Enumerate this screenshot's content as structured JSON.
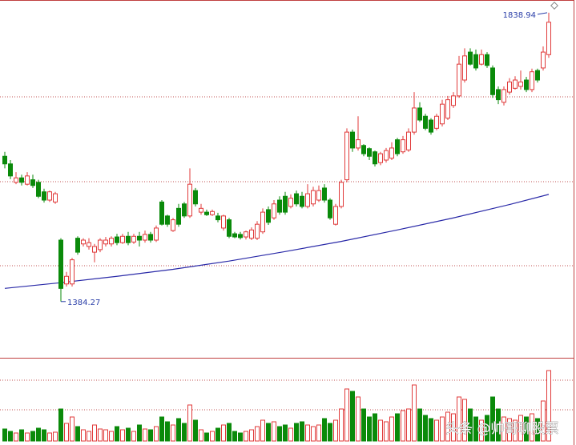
{
  "chart_data": {
    "type": "candlestick",
    "open": [
      1613,
      1601,
      1572,
      1579,
      1569,
      1576,
      1572,
      1557,
      1544,
      1541,
      1481,
      1412,
      1412,
      1484,
      1475,
      1471,
      1462,
      1466,
      1475,
      1475,
      1486,
      1477,
      1487,
      1478,
      1487,
      1481,
      1490,
      1481,
      1541,
      1519,
      1496,
      1531,
      1538,
      1519,
      1559,
      1525,
      1525,
      1521,
      1519,
      1500,
      1513,
      1491,
      1490,
      1486,
      1484,
      1484,
      1494,
      1529,
      1516,
      1544,
      1550,
      1534,
      1554,
      1550,
      1534,
      1538,
      1544,
      1563,
      1544,
      1506,
      1534,
      1576,
      1651,
      1626,
      1630,
      1625,
      1620,
      1603,
      1607,
      1610,
      1639,
      1620,
      1623,
      1651,
      1689,
      1676,
      1670,
      1657,
      1664,
      1673,
      1693,
      1708,
      1733,
      1777,
      1773,
      1758,
      1773,
      1752,
      1718,
      1698,
      1714,
      1720,
      1723,
      1733,
      1718,
      1748,
      1752,
      1773
    ],
    "high": [
      1620,
      1607,
      1588,
      1584,
      1588,
      1584,
      1576,
      1562,
      1559,
      1557,
      1484,
      1431,
      1453,
      1487,
      1484,
      1484,
      1475,
      1484,
      1486,
      1487,
      1491,
      1491,
      1494,
      1491,
      1494,
      1496,
      1494,
      1504,
      1544,
      1521,
      1516,
      1538,
      1541,
      1594,
      1563,
      1538,
      1529,
      1529,
      1524,
      1521,
      1516,
      1494,
      1494,
      1496,
      1501,
      1511,
      1531,
      1534,
      1544,
      1550,
      1557,
      1553,
      1559,
      1557,
      1569,
      1565,
      1567,
      1569,
      1547,
      1538,
      1576,
      1657,
      1655,
      1676,
      1632,
      1627,
      1622,
      1620,
      1626,
      1635,
      1642,
      1645,
      1657,
      1714,
      1698,
      1680,
      1673,
      1680,
      1702,
      1708,
      1714,
      1771,
      1783,
      1783,
      1781,
      1781,
      1777,
      1756,
      1723,
      1723,
      1736,
      1739,
      1748,
      1738,
      1751,
      1751,
      1786,
      1838.94
    ],
    "low": [
      1594,
      1577,
      1569,
      1567,
      1567,
      1563,
      1547,
      1540,
      1541,
      1538,
      1384.27,
      1408,
      1408,
      1458,
      1471,
      1466,
      1446,
      1462,
      1471,
      1471,
      1473,
      1475,
      1473,
      1475,
      1471,
      1477,
      1477,
      1478,
      1504,
      1502,
      1494,
      1502,
      1516,
      1516,
      1534,
      1521,
      1519,
      1519,
      1509,
      1496,
      1484,
      1484,
      1482,
      1482,
      1481,
      1481,
      1491,
      1505,
      1513,
      1521,
      1521,
      1531,
      1534,
      1531,
      1531,
      1534,
      1541,
      1540,
      1513,
      1504,
      1531,
      1572,
      1620,
      1622,
      1613,
      1607,
      1597,
      1599,
      1603,
      1607,
      1613,
      1617,
      1620,
      1647,
      1667,
      1654,
      1647,
      1654,
      1660,
      1670,
      1689,
      1705,
      1729,
      1756,
      1748,
      1756,
      1752,
      1705,
      1695,
      1693,
      1710,
      1718,
      1718,
      1714,
      1714,
      1729,
      1748,
      1768
    ],
    "close": [
      1601,
      1582,
      1579,
      1572,
      1582,
      1567,
      1550,
      1544,
      1557,
      1554,
      1405,
      1424,
      1450,
      1462,
      1481,
      1477,
      1471,
      1481,
      1481,
      1484,
      1477,
      1487,
      1477,
      1487,
      1481,
      1490,
      1481,
      1500,
      1506,
      1506,
      1513,
      1506,
      1519,
      1569,
      1538,
      1531,
      1521,
      1526,
      1513,
      1519,
      1487,
      1486,
      1485,
      1494,
      1497,
      1506,
      1525,
      1509,
      1538,
      1525,
      1525,
      1547,
      1538,
      1534,
      1554,
      1559,
      1559,
      1544,
      1516,
      1534,
      1572,
      1651,
      1626,
      1639,
      1617,
      1613,
      1601,
      1617,
      1622,
      1626,
      1617,
      1639,
      1651,
      1689,
      1670,
      1657,
      1651,
      1676,
      1695,
      1702,
      1708,
      1758,
      1771,
      1758,
      1752,
      1773,
      1756,
      1710,
      1702,
      1718,
      1730,
      1733,
      1730,
      1718,
      1746,
      1733,
      1777,
      1824
    ],
    "volume": [
      15,
      12,
      10,
      14,
      10,
      12,
      16,
      14,
      10,
      11,
      40,
      22,
      30,
      18,
      14,
      12,
      20,
      15,
      14,
      12,
      18,
      14,
      16,
      12,
      20,
      15,
      14,
      18,
      30,
      24,
      20,
      28,
      22,
      45,
      26,
      14,
      10,
      12,
      16,
      20,
      22,
      12,
      10,
      12,
      14,
      18,
      26,
      22,
      24,
      18,
      20,
      16,
      22,
      24,
      20,
      18,
      20,
      28,
      22,
      26,
      40,
      65,
      62,
      55,
      40,
      30,
      34,
      26,
      24,
      30,
      34,
      38,
      40,
      70,
      40,
      32,
      28,
      26,
      30,
      36,
      34,
      55,
      52,
      40,
      30,
      26,
      32,
      55,
      40,
      30,
      28,
      26,
      32,
      30,
      34,
      28,
      50,
      88
    ],
    "ylim": [
      1295.8,
      1859
    ],
    "vlim": [
      0,
      100
    ],
    "gridlines": [
      1706.5,
      1573,
      1440.7
    ],
    "volume_gridlines": [
      76,
      39
    ],
    "ma": {
      "x": [
        0,
        10,
        20,
        30,
        40,
        50,
        60,
        70,
        80,
        90,
        97
      ],
      "values": [
        1405,
        1414,
        1424,
        1435,
        1448,
        1463,
        1479,
        1497,
        1516,
        1537,
        1553
      ],
      "color": "#2a2aa8"
    },
    "up_color": "#e03a3a",
    "down_color": "#0a8a0a",
    "label_color": "#2a3ea8"
  },
  "watermark": "头条 @帅哥聊股票"
}
